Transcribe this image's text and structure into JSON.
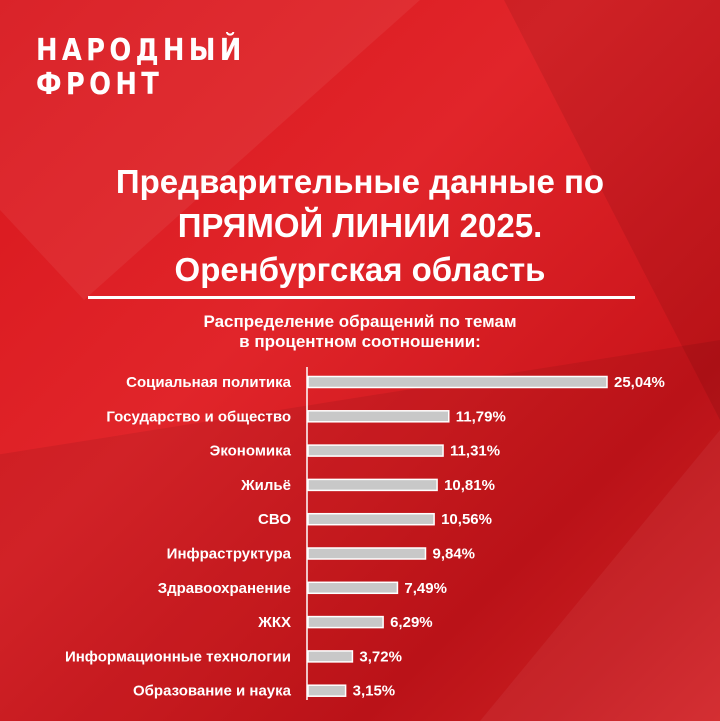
{
  "logo": {
    "line1": "НАРОДНЫЙ",
    "line2": "ФРОНТ"
  },
  "title": {
    "line1": "Предварительные данные по",
    "line2": "ПРЯМОЙ ЛИНИИ 2025.",
    "line3": "Оренбургская область"
  },
  "colors": {
    "background": "#e0232a",
    "text": "#ffffff",
    "bar": "#c8c8c8",
    "bar_outline": "#ffffff"
  },
  "chart_data": {
    "type": "bar",
    "orientation": "horizontal",
    "title_line1": "Распределение обращений по темам",
    "title_line2": "в процентном соотношении:",
    "categories": [
      "Социальная политика",
      "Государство и общество",
      "Экономика",
      "Жильё",
      "СВО",
      "Инфраструктура",
      "Здравоохранение",
      "ЖКХ",
      "Информационные технологии",
      "Образование и наука"
    ],
    "values": [
      25.04,
      11.79,
      11.31,
      10.81,
      10.56,
      9.84,
      7.49,
      6.29,
      3.72,
      3.15
    ],
    "value_labels": [
      "25,04%",
      "11,79%",
      "11,31%",
      "10,81%",
      "10,56%",
      "9,84%",
      "7,49%",
      "6,29%",
      "3,72%",
      "3,15%"
    ],
    "xlim": [
      0,
      25.04
    ],
    "grid": false,
    "legend": "none"
  }
}
